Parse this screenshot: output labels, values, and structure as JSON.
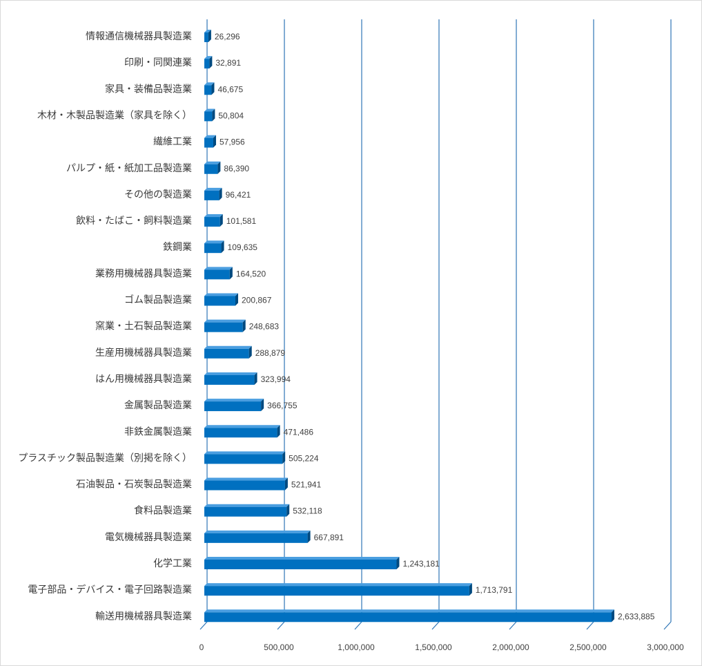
{
  "chart_data": {
    "type": "bar",
    "orientation": "horizontal",
    "title": "",
    "xlabel": "",
    "ylabel": "",
    "xlim": [
      0,
      3000000
    ],
    "x_ticks": [
      0,
      500000,
      1000000,
      1500000,
      2000000,
      2500000,
      3000000
    ],
    "x_tick_labels": [
      "0",
      "500,000",
      "1,000,000",
      "1,500,000",
      "2,000,000",
      "2,500,000",
      "3,000,000"
    ],
    "grid": "vertical",
    "legend": "none",
    "bar_color": "#0070c0",
    "bar_top_color": "#4a9ee0",
    "bar_side_color": "#004a80",
    "grid_color": "#2e75b6",
    "categories": [
      "情報通信機械器具製造業",
      "印刷・同関連業",
      "家具・装備品製造業",
      "木材・木製品製造業（家具を除く）",
      "繊維工業",
      "パルプ・紙・紙加工品製造業",
      "その他の製造業",
      "飲料・たばこ・飼料製造業",
      "鉄鋼業",
      "業務用機械器具製造業",
      "ゴム製品製造業",
      "窯業・土石製品製造業",
      "生産用機械器具製造業",
      "はん用機械器具製造業",
      "金属製品製造業",
      "非鉄金属製造業",
      "プラスチック製品製造業（別掲を除く）",
      "石油製品・石炭製品製造業",
      "食料品製造業",
      "電気機械器具製造業",
      "化学工業",
      "電子部品・デバイス・電子回路製造業",
      "輸送用機械器具製造業"
    ],
    "values": [
      26296,
      32891,
      46675,
      50804,
      57956,
      86390,
      96421,
      101581,
      109635,
      164520,
      200867,
      248683,
      288879,
      323994,
      366755,
      471486,
      505224,
      521941,
      532118,
      667891,
      1243181,
      1713791,
      2633885
    ],
    "value_labels": [
      "26,296",
      "32,891",
      "46,675",
      "50,804",
      "57,956",
      "86,390",
      "96,421",
      "101,581",
      "109,635",
      "164,520",
      "200,867",
      "248,683",
      "288,879",
      "323,994",
      "366,755",
      "471,486",
      "505,224",
      "521,941",
      "532,118",
      "667,891",
      "1,243,181",
      "1,713,791",
      "2,633,885"
    ]
  }
}
